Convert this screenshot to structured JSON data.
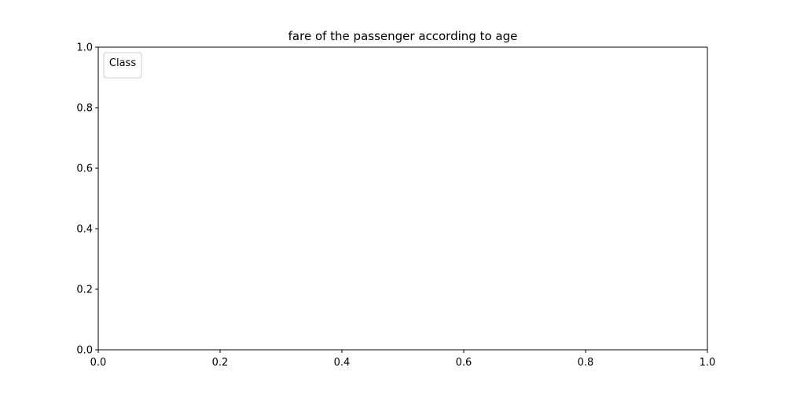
{
  "chart_data": {
    "type": "scatter",
    "title": "fare of the passenger according to age",
    "xlabel": "",
    "ylabel": "",
    "xlim": [
      0.0,
      1.0
    ],
    "ylim": [
      0.0,
      1.0
    ],
    "xticks": [
      "0.0",
      "0.2",
      "0.4",
      "0.6",
      "0.8",
      "1.0"
    ],
    "yticks": [
      "0.0",
      "0.2",
      "0.4",
      "0.6",
      "0.8",
      "1.0"
    ],
    "grid": false,
    "legend": {
      "title": "Class",
      "placement": "top-left",
      "entries": []
    },
    "series": []
  }
}
